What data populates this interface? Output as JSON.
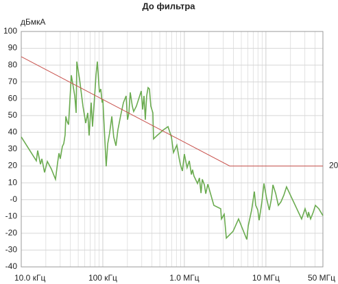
{
  "chart_data": {
    "type": "line",
    "title": "До фильтра",
    "y_label": "дБмкА",
    "x_scale": "log",
    "grid": true,
    "xlim": [
      10000,
      50000000
    ],
    "xticks": [
      {
        "value": 10000,
        "label": "10.0 кГц"
      },
      {
        "value": 100000,
        "label": "100 кГц"
      },
      {
        "value": 1000000,
        "label": "1.0 МГц"
      },
      {
        "value": 10000000,
        "label": "10 МГц"
      },
      {
        "value": 50000000,
        "label": "50 МГц"
      }
    ],
    "ylim": [
      -40,
      100
    ],
    "yticks": [
      -40,
      -30,
      -20,
      -10,
      {
        "value": 0,
        "label": "-0"
      },
      10,
      20,
      30,
      40,
      50,
      60,
      70,
      80,
      90,
      100
    ],
    "series": [
      {
        "color": "#6aab4f",
        "x": [
          10000,
          15300,
          15900,
          17200,
          17900,
          19300,
          20900,
          23400,
          26300,
          27900,
          29000,
          30100,
          31900,
          33200,
          34500,
          35200,
          36600,
          38000,
          41100,
          45300,
          47100,
          48000,
          51900,
          57100,
          61700,
          65400,
          67900,
          72100,
          74800,
          79400,
          82500,
          85700,
          90800,
          94400,
          98200,
          100000,
          110000,
          115000,
          121000,
          129000,
          136000,
          145000,
          153000,
          166000,
          179000,
          193000,
          201000,
          209000,
          217000,
          230000,
          239000,
          258000,
          296000,
          308000,
          320000,
          332000,
          345000,
          359000,
          373000,
          388000,
          411000,
          419000,
          462000,
          550000,
          630000,
          694000,
          735000,
          809000,
          859000,
          892000,
          946000,
          1000000,
          1080000,
          1150000,
          1220000,
          1260000,
          1310000,
          1450000,
          1530000,
          1600000,
          1660000,
          1760000,
          1830000,
          1940000,
          2300000,
          2790000,
          2850000,
          3080000,
          3270000,
          3960000,
          4620000,
          5830000,
          6070000,
          6680000,
          7220000,
          7500000,
          7950000,
          8260000,
          8930000,
          9460000,
          10200000,
          11000000,
          11700000,
          12200000,
          13200000,
          14200000,
          15300000,
          16600000,
          17900000,
          27400000,
          30200000,
          32700000,
          33300000,
          35300000,
          38100000,
          40400000,
          44500000,
          50000000
        ],
        "values": [
          37.3,
          23.1,
          29.2,
          21.0,
          24.3,
          16.2,
          22.7,
          18.2,
          12.1,
          21.9,
          27.6,
          24.3,
          31.6,
          33.3,
          38.5,
          49.5,
          46.3,
          44.6,
          74.0,
          61.7,
          51.6,
          82.1,
          71.5,
          55.6,
          45.5,
          51.6,
          38.1,
          57.7,
          43.4,
          61.7,
          74.0,
          82.1,
          63.8,
          65.8,
          57.7,
          59.7,
          19.8,
          33.3,
          39.4,
          49.5,
          37.3,
          32.0,
          41.4,
          50.3,
          57.7,
          61.7,
          47.5,
          51.6,
          63.8,
          55.6,
          52.4,
          55.6,
          64.6,
          53.6,
          61.7,
          47.5,
          61.7,
          66.6,
          65.8,
          55.6,
          51.6,
          36.1,
          38.1,
          41.4,
          43.4,
          37.3,
          28.0,
          32.4,
          25.1,
          21.0,
          17.0,
          27.1,
          19.0,
          23.1,
          14.9,
          17.8,
          14.1,
          9.6,
          12.9,
          3.9,
          12.1,
          8.8,
          3.5,
          9.2,
          -3.4,
          -5.4,
          -11.5,
          -8.7,
          -22.9,
          -18.8,
          -11.5,
          -23.7,
          -15.6,
          -6.2,
          4.8,
          -3.4,
          -6.2,
          -12.3,
          -1.3,
          9.6,
          0.7,
          -6.2,
          0.7,
          8.8,
          3.5,
          -3.4,
          -1.3,
          2.7,
          7.6,
          -11.5,
          -5.4,
          -10.7,
          -7.4,
          -11.5,
          -7.4,
          -3.4,
          -5.4,
          -9.5
        ]
      },
      {
        "color": "#c8504b",
        "x": [
          10000,
          3600000,
          50000000
        ],
        "values": [
          85,
          20,
          20
        ],
        "value_labels": [
          null,
          null,
          "20"
        ]
      }
    ]
  }
}
